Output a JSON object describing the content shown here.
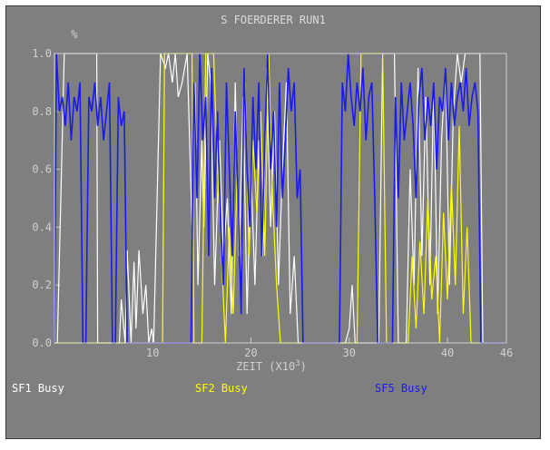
{
  "chart_data": {
    "type": "line",
    "title": "S FOERDERER RUN1",
    "ylabel": "%",
    "xlabel": "ZEIT (X10",
    "xlabel_exponent": "3",
    "xlabel_suffix": ")",
    "xlim": [
      0,
      46
    ],
    "ylim": [
      0.0,
      1.0
    ],
    "x_ticks": [
      "10",
      "20",
      "30",
      "40",
      "46"
    ],
    "y_ticks": [
      "0.0",
      "0.2",
      "0.4",
      "0.6",
      "0.8",
      "1.0"
    ],
    "grid": false,
    "legend": "bottom",
    "series": [
      {
        "name": "SF1 Busy",
        "color": "#ffffff",
        "x": [
          0.0,
          0.3,
          1.0,
          1.1,
          4.3,
          4.4,
          6.6,
          6.8,
          7.2,
          7.4,
          7.8,
          8.1,
          8.3,
          8.6,
          9.0,
          9.3,
          9.6,
          9.9,
          10.1,
          10.8,
          11.3,
          11.6,
          12.0,
          12.3,
          12.6,
          13.0,
          13.5,
          14.0,
          14.3,
          14.6,
          15.0,
          15.2,
          15.6,
          15.9,
          16.3,
          16.8,
          17.2,
          17.6,
          18.0,
          18.4,
          18.8,
          19.2,
          19.6,
          20.0,
          20.4,
          20.8,
          21.2,
          21.6,
          22.0,
          22.4,
          22.8,
          23.2,
          23.6,
          24.0,
          24.4,
          24.8,
          25.2,
          25.6,
          26.0,
          26.4,
          26.8,
          27.2,
          27.6,
          28.0,
          28.4,
          28.8,
          29.2,
          29.6,
          30.0,
          30.3,
          30.6,
          31.0,
          31.4,
          31.8,
          32.2,
          32.6,
          33.0,
          33.4,
          33.8,
          34.2,
          34.6,
          35.0,
          35.4,
          35.8,
          36.2,
          36.6,
          37.0,
          37.4,
          37.8,
          38.2,
          38.6,
          39.0,
          39.4,
          39.8,
          40.2,
          40.6,
          41.0,
          41.4,
          41.8,
          42.2,
          42.6,
          43.0,
          43.3,
          43.6,
          44.0,
          44.3,
          44.6,
          46.0
        ],
        "y": [
          0.0,
          0.0,
          1.0,
          1.0,
          1.0,
          0.0,
          0.0,
          0.15,
          0.0,
          0.32,
          0.0,
          0.28,
          0.05,
          0.32,
          0.1,
          0.2,
          0.0,
          0.05,
          0.0,
          1.0,
          0.95,
          1.0,
          0.9,
          1.0,
          0.85,
          0.9,
          1.0,
          0.4,
          0.9,
          0.2,
          0.7,
          0.4,
          1.0,
          0.9,
          0.2,
          0.7,
          0.3,
          0.5,
          0.1,
          0.9,
          0.3,
          0.85,
          0.1,
          0.6,
          0.2,
          0.7,
          0.3,
          0.95,
          0.4,
          0.8,
          0.2,
          0.6,
          0.9,
          0.1,
          0.3,
          0.0,
          0.0,
          0.0,
          0.0,
          0.0,
          0.0,
          0.0,
          0.0,
          0.0,
          0.0,
          0.0,
          0.0,
          0.0,
          0.05,
          0.2,
          0.0,
          0.0,
          0.0,
          0.0,
          0.0,
          0.0,
          0.0,
          1.0,
          1.0,
          1.0,
          1.0,
          0.0,
          0.0,
          0.0,
          0.6,
          0.2,
          0.95,
          0.3,
          0.85,
          0.2,
          0.9,
          0.1,
          0.7,
          0.95,
          0.2,
          0.8,
          1.0,
          0.9,
          1.0,
          1.0,
          1.0,
          1.0,
          1.0,
          0.0,
          0.0,
          0.0,
          0.0,
          0.0
        ]
      },
      {
        "name": "SF2 Busy",
        "color": "#ffff00",
        "x": [
          0.0,
          8.4,
          8.8,
          9.1,
          9.5,
          9.7,
          10.0,
          10.4,
          11.0,
          11.2,
          11.6,
          12.0,
          12.4,
          12.8,
          13.2,
          13.6,
          14.0,
          14.2,
          14.6,
          15.0,
          15.4,
          15.8,
          16.2,
          16.6,
          17.0,
          17.4,
          17.8,
          18.2,
          18.6,
          19.0,
          19.4,
          19.8,
          20.2,
          20.6,
          21.0,
          21.4,
          21.8,
          22.2,
          22.6,
          23.0,
          23.4,
          23.8,
          24.2,
          24.6,
          25.0,
          25.4,
          25.8,
          26.2,
          29.0,
          29.4,
          30.0,
          30.4,
          30.8,
          31.2,
          32.6,
          33.0,
          33.4,
          33.8,
          34.2,
          35.2,
          35.6,
          36.0,
          36.4,
          36.8,
          37.2,
          37.6,
          38.0,
          38.4,
          38.8,
          39.2,
          39.6,
          40.0,
          40.4,
          40.8,
          41.2,
          41.6,
          42.0,
          42.4,
          42.8,
          43.2,
          46.0
        ],
        "y": [
          0.0,
          0.0,
          0.0,
          0.0,
          0.0,
          0.0,
          0.0,
          0.0,
          0.0,
          1.0,
          1.0,
          1.0,
          1.0,
          1.0,
          1.0,
          1.0,
          1.0,
          0.0,
          0.0,
          0.0,
          1.0,
          1.0,
          1.0,
          0.6,
          0.3,
          0.0,
          0.4,
          0.1,
          0.6,
          0.25,
          0.9,
          0.3,
          0.7,
          0.45,
          0.8,
          0.3,
          1.0,
          0.5,
          0.2,
          0.0,
          0.0,
          0.0,
          0.0,
          0.0,
          0.0,
          0.0,
          0.0,
          0.0,
          0.0,
          0.0,
          0.0,
          0.0,
          0.0,
          1.0,
          1.0,
          1.0,
          1.0,
          0.0,
          0.0,
          0.0,
          0.0,
          0.0,
          0.3,
          0.05,
          0.35,
          0.1,
          0.5,
          0.15,
          0.3,
          0.0,
          0.45,
          0.15,
          0.55,
          0.2,
          0.75,
          0.1,
          0.4,
          0.0,
          0.0,
          0.0,
          0.0
        ]
      },
      {
        "name": "SF5 Busy",
        "color": "#1a1aee",
        "x": [
          0.0,
          0.2,
          0.5,
          0.8,
          1.1,
          1.4,
          1.7,
          2.0,
          2.3,
          2.6,
          2.9,
          3.2,
          3.5,
          3.8,
          4.1,
          4.4,
          4.7,
          5.0,
          5.3,
          5.6,
          5.9,
          6.2,
          6.5,
          6.8,
          7.1,
          7.4,
          7.7,
          8.0,
          8.3,
          8.6,
          13.6,
          13.9,
          14.2,
          14.5,
          14.8,
          15.1,
          15.4,
          15.7,
          16.0,
          16.3,
          16.6,
          16.9,
          17.2,
          17.5,
          17.8,
          18.1,
          18.4,
          18.7,
          19.0,
          19.3,
          19.6,
          19.9,
          20.2,
          20.5,
          20.8,
          21.1,
          21.4,
          21.7,
          22.0,
          22.3,
          22.6,
          22.9,
          23.2,
          23.5,
          23.8,
          24.1,
          24.4,
          24.7,
          25.0,
          25.3,
          25.6,
          25.9,
          26.2,
          29.0,
          29.3,
          29.6,
          29.9,
          30.2,
          30.5,
          30.8,
          31.1,
          31.4,
          31.7,
          32.0,
          32.3,
          32.6,
          32.9,
          33.2,
          33.5,
          33.8,
          34.1,
          34.4,
          34.7,
          35.0,
          35.3,
          35.6,
          35.9,
          36.2,
          36.5,
          36.8,
          37.1,
          37.4,
          37.7,
          38.0,
          38.3,
          38.6,
          38.9,
          39.2,
          39.5,
          39.8,
          40.1,
          40.4,
          40.7,
          41.0,
          41.3,
          41.6,
          41.9,
          42.2,
          42.5,
          42.8,
          43.1,
          43.4,
          46.0
        ],
        "y": [
          0.0,
          1.0,
          0.8,
          0.85,
          0.75,
          0.9,
          0.7,
          0.85,
          0.8,
          0.9,
          0.0,
          0.0,
          0.85,
          0.8,
          0.9,
          0.75,
          0.85,
          0.7,
          0.8,
          0.9,
          0.0,
          0.0,
          0.85,
          0.75,
          0.8,
          0.0,
          0.0,
          0.0,
          0.0,
          0.0,
          0.0,
          0.0,
          0.9,
          0.5,
          1.0,
          0.7,
          0.85,
          0.3,
          0.95,
          0.5,
          0.8,
          0.4,
          0.2,
          0.9,
          0.6,
          0.3,
          0.8,
          0.5,
          0.1,
          0.95,
          0.6,
          0.4,
          0.85,
          0.6,
          0.9,
          0.3,
          0.7,
          1.0,
          0.6,
          0.8,
          0.4,
          0.9,
          0.5,
          0.7,
          0.95,
          0.8,
          0.9,
          0.5,
          0.6,
          0.0,
          0.0,
          0.0,
          0.0,
          0.0,
          0.9,
          0.8,
          1.0,
          0.85,
          0.75,
          0.9,
          0.8,
          0.95,
          0.7,
          0.85,
          0.9,
          0.5,
          0.0,
          0.0,
          0.0,
          0.0,
          0.0,
          0.0,
          0.85,
          0.5,
          0.9,
          0.7,
          0.8,
          0.9,
          0.75,
          0.5,
          0.85,
          0.95,
          0.7,
          0.85,
          0.75,
          0.9,
          0.6,
          0.85,
          0.8,
          0.95,
          0.7,
          0.9,
          0.75,
          0.85,
          0.9,
          0.8,
          0.95,
          0.75,
          0.85,
          0.9,
          0.8,
          0.0,
          0.0
        ]
      }
    ]
  }
}
